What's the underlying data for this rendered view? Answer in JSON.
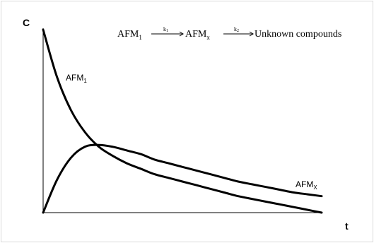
{
  "chart_data": {
    "type": "line",
    "title": "",
    "ylabel": "C",
    "xlabel": "t",
    "grid": false,
    "legend": "none",
    "xlim": [
      0,
      10
    ],
    "ylim": [
      0,
      1
    ],
    "reaction": {
      "species1": "AFM",
      "species1_sub": "1",
      "speciesX": "AFM",
      "speciesX_sub": "x",
      "k1_label": "k",
      "k1_sub": "1",
      "k2_label": "k",
      "k2_sub": "2",
      "product": "Unknown compounds"
    },
    "series": [
      {
        "name": "AFM1",
        "label_main": "AFM",
        "label_sub": "1",
        "x": [
          0,
          0.5,
          1,
          1.5,
          2,
          2.5,
          3,
          3.5,
          4,
          4.5,
          5,
          5.5,
          6,
          6.5,
          7,
          7.5,
          8,
          8.5,
          9,
          9.5,
          10
        ],
        "values": [
          1.0,
          0.74,
          0.56,
          0.44,
          0.36,
          0.31,
          0.27,
          0.24,
          0.21,
          0.19,
          0.17,
          0.15,
          0.13,
          0.11,
          0.09,
          0.075,
          0.06,
          0.045,
          0.03,
          0.015,
          0.0
        ]
      },
      {
        "name": "AFMx",
        "label_main": "AFM",
        "label_sub": "X",
        "x": [
          0,
          0.5,
          1,
          1.5,
          2,
          2.5,
          3,
          3.5,
          4,
          4.5,
          5,
          5.5,
          6,
          6.5,
          7,
          7.5,
          8,
          8.5,
          9,
          9.5,
          10
        ],
        "values": [
          0.0,
          0.18,
          0.3,
          0.36,
          0.37,
          0.36,
          0.34,
          0.32,
          0.29,
          0.27,
          0.25,
          0.23,
          0.21,
          0.19,
          0.17,
          0.155,
          0.14,
          0.125,
          0.11,
          0.1,
          0.09
        ]
      }
    ]
  }
}
